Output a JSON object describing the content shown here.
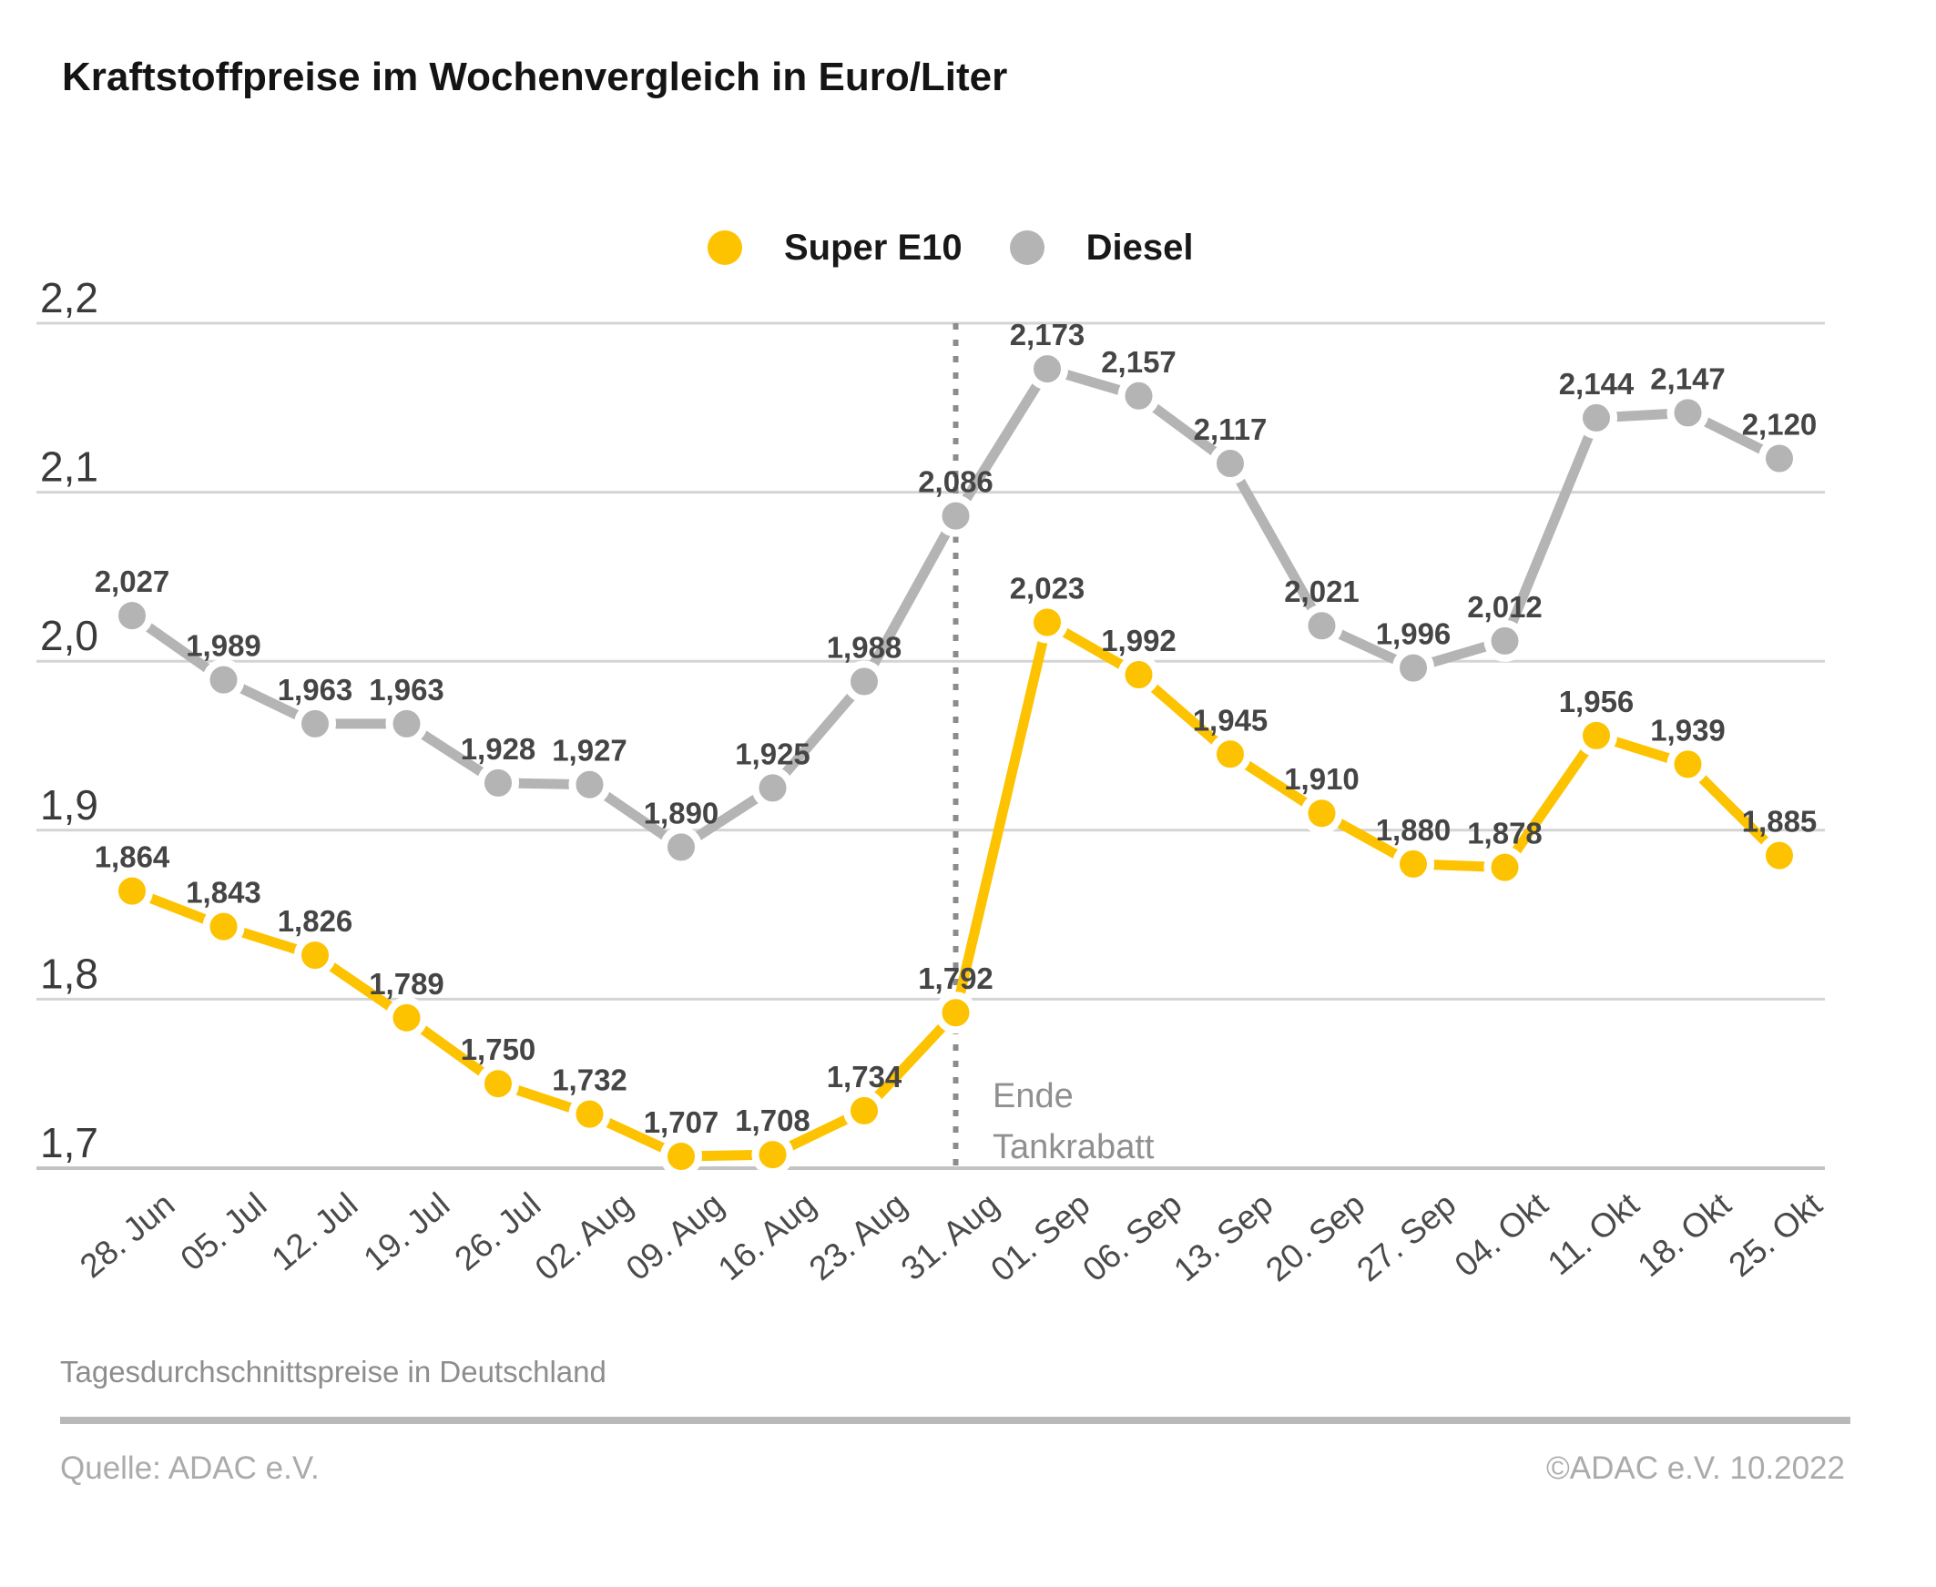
{
  "title": "Kraftstoffpreise im Wochenvergleich in Euro/Liter",
  "legend": {
    "super_e10": "Super E10",
    "diesel": "Diesel"
  },
  "annotation": {
    "line1": "Ende",
    "line2": "Tankrabatt"
  },
  "footer": {
    "note": "Tagesdurchschnittspreise in Deutschland",
    "source": "Quelle: ADAC e.V.",
    "copyright": "©ADAC e.V.  10.2022"
  },
  "colors": {
    "super_e10": "#fdc300",
    "diesel": "#b4b4b4",
    "grid": "#d4d4d4",
    "axis_baseline": "#c3c3c3",
    "data_label": "#454545",
    "y_tick_label": "#3a3a3a",
    "reference_line": "#8c8c8c"
  },
  "chart_data": {
    "type": "line",
    "title": "Kraftstoffpreise im Wochenvergleich in Euro/Liter",
    "xlabel": "",
    "ylabel": "Euro/Liter",
    "ylim": [
      1.7,
      2.2
    ],
    "grid": true,
    "legend_position": "top-center",
    "y_ticks": [
      "2,2",
      "2,1",
      "2,0",
      "1,9",
      "1,8",
      "1,7"
    ],
    "categories": [
      "28. Jun",
      "05. Jul",
      "12. Jul",
      "19. Jul",
      "26. Jul",
      "02. Aug",
      "09. Aug",
      "16. Aug",
      "23. Aug",
      "31. Aug",
      "01. Sep",
      "06. Sep",
      "13. Sep",
      "20. Sep",
      "27. Sep",
      "04. Okt",
      "11. Okt",
      "18. Okt",
      "25. Okt"
    ],
    "series": [
      {
        "name": "Super E10",
        "color": "#fdc300",
        "values": [
          1.864,
          1.843,
          1.826,
          1.789,
          1.75,
          1.732,
          1.707,
          1.708,
          1.734,
          1.792,
          2.023,
          1.992,
          1.945,
          1.91,
          1.88,
          1.878,
          1.956,
          1.939,
          1.885
        ]
      },
      {
        "name": "Diesel",
        "color": "#b4b4b4",
        "values": [
          2.027,
          1.989,
          1.963,
          1.963,
          1.928,
          1.927,
          1.89,
          1.925,
          1.988,
          2.086,
          2.173,
          2.157,
          2.117,
          2.021,
          1.996,
          2.012,
          2.144,
          2.147,
          2.12
        ]
      }
    ],
    "reference_line": {
      "category": "31. Aug",
      "label": [
        "Ende",
        "Tankrabatt"
      ]
    },
    "value_decimal_separator": ","
  }
}
